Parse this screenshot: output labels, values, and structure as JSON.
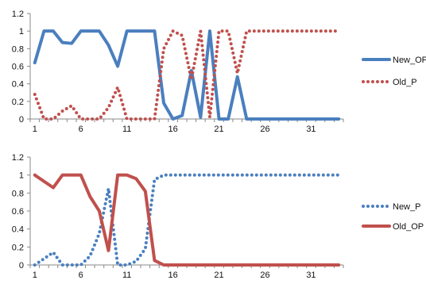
{
  "chart_data": [
    {
      "type": "line",
      "title": "",
      "xlabel": "",
      "ylabel": "",
      "x": [
        1,
        2,
        3,
        4,
        5,
        6,
        7,
        8,
        9,
        10,
        11,
        12,
        13,
        14,
        15,
        16,
        17,
        18,
        19,
        20,
        21,
        22,
        23,
        24,
        25,
        26,
        27,
        28,
        29,
        30,
        31,
        32,
        33,
        34
      ],
      "xticks": [
        1,
        6,
        11,
        16,
        21,
        26,
        31
      ],
      "ylim": [
        0,
        1.2
      ],
      "yticks": [
        "0",
        "0.2",
        "0.4",
        "0.6",
        "0.8",
        "1",
        "1.2"
      ],
      "grid": false,
      "legend_position": "right",
      "series": [
        {
          "name": "New_OP",
          "style": "solid",
          "color": "#4a7fbf",
          "values": [
            0.64,
            1,
            1,
            0.87,
            0.86,
            1,
            1,
            1,
            0.84,
            0.6,
            1,
            1,
            1,
            1,
            0.18,
            0,
            0.04,
            0.55,
            0.02,
            1,
            0,
            0,
            0.48,
            0,
            0,
            0,
            0,
            0,
            0,
            0,
            0,
            0,
            0,
            0
          ]
        },
        {
          "name": "Old_P",
          "style": "dotted",
          "color": "#c0504d",
          "values": [
            0.28,
            0,
            0,
            0.09,
            0.15,
            0,
            0,
            0,
            0.13,
            0.36,
            0,
            0,
            0,
            0,
            0.8,
            1,
            0.95,
            0.45,
            1,
            0.02,
            1,
            1,
            0.52,
            1,
            1,
            1,
            1,
            1,
            1,
            1,
            1,
            1,
            1,
            1
          ]
        }
      ]
    },
    {
      "type": "line",
      "title": "",
      "xlabel": "",
      "ylabel": "",
      "x": [
        1,
        2,
        3,
        4,
        5,
        6,
        7,
        8,
        9,
        10,
        11,
        12,
        13,
        14,
        15,
        16,
        17,
        18,
        19,
        20,
        21,
        22,
        23,
        24,
        25,
        26,
        27,
        28,
        29,
        30,
        31,
        32,
        33,
        34
      ],
      "xticks": [
        1,
        6,
        11,
        16,
        21,
        26,
        31
      ],
      "ylim": [
        0,
        1.2
      ],
      "yticks": [
        "0",
        "0.2",
        "0.4",
        "0.6",
        "0.8",
        "1",
        "1.2"
      ],
      "grid": false,
      "legend_position": "right",
      "series": [
        {
          "name": "New_P",
          "style": "dotted",
          "color": "#4a7fbf",
          "values": [
            0,
            0.07,
            0.14,
            0,
            0,
            0,
            0.1,
            0.35,
            0.85,
            0,
            0,
            0.04,
            0.18,
            0.95,
            1,
            1,
            1,
            1,
            1,
            1,
            1,
            1,
            1,
            1,
            1,
            1,
            1,
            1,
            1,
            1,
            1,
            1,
            1,
            1
          ]
        },
        {
          "name": "Old_OP",
          "style": "solid",
          "color": "#c0504d",
          "values": [
            1,
            0.93,
            0.86,
            1,
            1,
            1,
            0.76,
            0.6,
            0.16,
            1,
            1,
            0.96,
            0.82,
            0.05,
            0,
            0,
            0,
            0,
            0,
            0,
            0,
            0,
            0,
            0,
            0,
            0,
            0,
            0,
            0,
            0,
            0,
            0,
            0,
            0
          ]
        }
      ]
    }
  ]
}
